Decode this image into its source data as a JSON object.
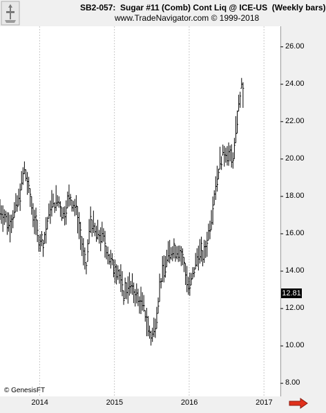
{
  "header": {
    "title": "SB2-057:  Sugar #11 (Comb) Cont Liq @ ICE-US  (Weekly bars)",
    "source": "www.TradeNavigator.com © 1999-2018"
  },
  "footer": {
    "copyright": "© GenesisFT"
  },
  "icons": {
    "logo": "trade-navigator-logo-icon",
    "arrow": "red-arrow-right-icon"
  },
  "colors": {
    "bars": "#000000",
    "grid": "#c8c8c8",
    "arrow": "#e0301c",
    "price_box": "#000000"
  },
  "chart_data": {
    "type": "ohlc",
    "title": "SB2-057:  Sugar #11 (Comb) Cont Liq @ ICE-US  (Weekly bars)",
    "xlabel": "",
    "ylabel": "",
    "ylim": [
      7.3,
      27.1
    ],
    "yticks": [
      8,
      10,
      12,
      14,
      16,
      18,
      20,
      22,
      24,
      26
    ],
    "ytick_labels": [
      "8.00",
      "10.00",
      "12.00",
      "14.00",
      "16.00",
      "18.00",
      "20.00",
      "22.00",
      "24.00",
      "26.00"
    ],
    "xticks": [
      "2014",
      "2015",
      "2016",
      "2017"
    ],
    "xtick_positions": [
      2014.0,
      2015.0,
      2016.0,
      2017.0
    ],
    "xlim": [
      2013.47,
      2017.22
    ],
    "last_price": "12.81",
    "grid": "vertical dashed",
    "series": [
      {
        "key_points": [
          [
            2013.47,
            17.3
          ],
          [
            2013.6,
            16.5
          ],
          [
            2013.72,
            17.8
          ],
          [
            2013.8,
            19.5
          ],
          [
            2013.88,
            17.8
          ],
          [
            2013.98,
            15.8
          ],
          [
            2014.05,
            15.5
          ],
          [
            2014.15,
            17.5
          ],
          [
            2014.25,
            17.8
          ],
          [
            2014.32,
            17.0
          ],
          [
            2014.4,
            18.0
          ],
          [
            2014.5,
            17.2
          ],
          [
            2014.58,
            15.0
          ],
          [
            2014.62,
            14.0
          ],
          [
            2014.68,
            16.8
          ],
          [
            2014.75,
            16.0
          ],
          [
            2014.85,
            15.8
          ],
          [
            2014.95,
            14.5
          ],
          [
            2015.05,
            14.0
          ],
          [
            2015.12,
            12.8
          ],
          [
            2015.18,
            13.2
          ],
          [
            2015.25,
            13.0
          ],
          [
            2015.32,
            12.5
          ],
          [
            2015.4,
            12.0
          ],
          [
            2015.45,
            11.0
          ],
          [
            2015.5,
            10.4
          ],
          [
            2015.55,
            11.3
          ],
          [
            2015.62,
            13.5
          ],
          [
            2015.7,
            14.6
          ],
          [
            2015.77,
            15.2
          ],
          [
            2015.85,
            15.2
          ],
          [
            2015.92,
            14.6
          ],
          [
            2016.0,
            13.0
          ],
          [
            2016.05,
            13.8
          ],
          [
            2016.12,
            15.0
          ],
          [
            2016.2,
            14.8
          ],
          [
            2016.28,
            16.5
          ],
          [
            2016.35,
            18.5
          ],
          [
            2016.42,
            20.0
          ],
          [
            2016.5,
            20.5
          ],
          [
            2016.55,
            20.0
          ],
          [
            2016.6,
            20.2
          ],
          [
            2016.65,
            22.5
          ],
          [
            2016.7,
            23.8
          ],
          [
            2016.73,
            23.4
          ]
        ]
      }
    ]
  }
}
